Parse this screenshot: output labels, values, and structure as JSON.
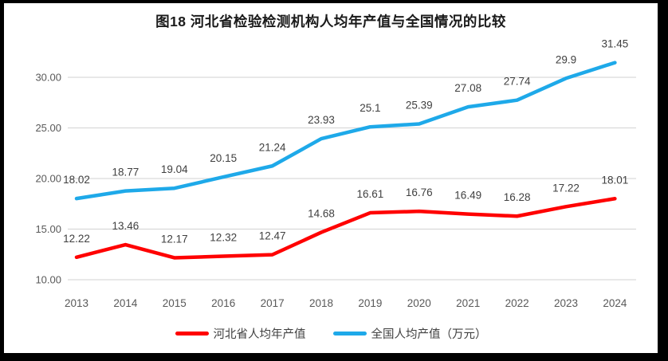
{
  "chart_data": {
    "type": "line",
    "title": "图18 河北省检验检测机构人均年产值与全国情况的比较",
    "categories": [
      "2013",
      "2014",
      "2015",
      "2016",
      "2017",
      "2018",
      "2019",
      "2020",
      "2021",
      "2022",
      "2023",
      "2024"
    ],
    "series": [
      {
        "name": "河北省人均年产值",
        "color": "#FF0000",
        "values": [
          12.22,
          13.46,
          12.17,
          12.32,
          12.47,
          14.68,
          16.61,
          16.76,
          16.49,
          16.28,
          17.22,
          18.01
        ],
        "labels": [
          "12.22",
          "13.46",
          "12.17",
          "12.32",
          "12.47",
          "14.68",
          "16.61",
          "16.76",
          "16.49",
          "16.28",
          "17.22",
          "18.01"
        ]
      },
      {
        "name": "全国人均产值（万元）",
        "color": "#1EA9E9",
        "values": [
          18.02,
          18.77,
          19.04,
          20.15,
          21.24,
          23.93,
          25.1,
          25.39,
          27.08,
          27.74,
          29.9,
          31.45
        ],
        "labels": [
          "18.02",
          "18.77",
          "19.04",
          "20.15",
          "21.24",
          "23.93",
          "25.1",
          "25.39",
          "27.08",
          "27.74",
          "29.9",
          "31.45"
        ]
      }
    ],
    "ytick_values": [
      10,
      15,
      20,
      25,
      30
    ],
    "ytick_labels": [
      "10.00",
      "15.00",
      "20.00",
      "25.00",
      "30.00"
    ],
    "ylim": [
      10,
      32.8
    ],
    "grid": true,
    "legend_position": "bottom",
    "colors": {
      "gridline": "#D9D9D9",
      "axis_tick_text": "#595959",
      "data_label_text": "#404040",
      "title_text": "#1A1A1A",
      "frame_border": "#000000",
      "background": "#FFFFFF"
    }
  }
}
